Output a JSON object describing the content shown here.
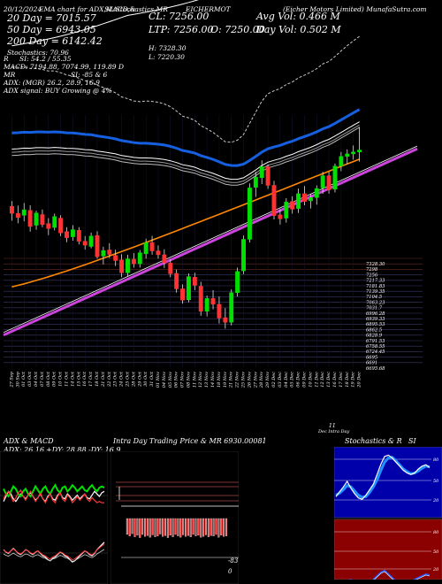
{
  "header": {
    "date": "20/12/2024",
    "ema_legend": "EMA chart for ADX,MACD,&",
    "sl_label": "SL:Stochastics,MR",
    "symbol_legend": "EICHERMOT",
    "brand": "(Eicher Motors Limited) MunafaSutra.com",
    "ema20": "20 Day = 7015.57",
    "ema50": "50 Day = 6943.05",
    "ema200": "200 Day = 6142.42",
    "stochastics": "Stochastics: 70.96",
    "cl": "CL: 7256.00",
    "ltp": "LTP: 7256.00",
    "open": "O: 7250.00",
    "high": "H: 7328.30",
    "low": "L: 7220.30",
    "avg_vol": "Avg Vol: 0.466  M",
    "day_vol": "Day Vol: 0.502  M",
    "si_line": "SI: 54.2  /  55.35",
    "macd_line": "MACD: 7194.88, 7074.99, 119.89 D",
    "mr_line": "SI: -85 & 6",
    "adx_line": "ADX:            (MGR) 26.2, 28.9, 16.9",
    "adx_signal": "ADX  signal:                    BUY Growing @ 4%",
    "r_label": "R",
    "mr_label": "MR",
    "adx_label": "ADX:"
  },
  "colors": {
    "up": "#00e000",
    "down": "#ff3333",
    "ema20": "#ffffff",
    "ema50": "#1560e0",
    "ema200": "#ff8800",
    "band": "#cc44dd",
    "price_level": "#aa3333"
  },
  "chart_data": [
    {
      "type": "candlestick",
      "title": "Eicher Motors Limited daily price with EMA",
      "ylim": [
        6580,
        7420
      ],
      "price_axis": [
        "7328.30",
        "7298",
        "7256",
        "7217.33",
        "7181.83",
        "7139.35",
        "7104.5",
        "7063.23",
        "7031.7",
        "6996.28",
        "6939.33",
        "6895.53",
        "6862.5",
        "6828.9",
        "6791.53",
        "6758.55",
        "6724.45",
        "6695",
        "6691",
        "6695.68"
      ],
      "x": [
        "27 Sep",
        "30 Sep",
        "01 Oct",
        "03 Oct",
        "04 Oct",
        "07 Oct",
        "08 Oct",
        "09 Oct",
        "10 Oct",
        "11 Oct",
        "14 Oct",
        "15 Oct",
        "16 Oct",
        "17 Oct",
        "18 Oct",
        "21 Oct",
        "22 Oct",
        "23 Oct",
        "24 Oct",
        "25 Oct",
        "28 Oct",
        "29 Oct",
        "30 Oct",
        "31 Oct",
        "01 Nov",
        "04 Nov",
        "05 Nov",
        "06 Nov",
        "07 Nov",
        "08 Nov",
        "11 Nov",
        "12 Nov",
        "13 Nov",
        "14 Nov",
        "18 Nov",
        "19 Nov",
        "21 Nov",
        "22 Nov",
        "25 Nov",
        "26 Nov",
        "27 Nov",
        "28 Nov",
        "29 Nov",
        "02 Dec",
        "03 Dec",
        "04 Dec",
        "05 Dec",
        "06 Dec",
        "09 Dec",
        "10 Dec",
        "11 Dec",
        "12 Dec",
        "13 Dec",
        "16 Dec",
        "17 Dec",
        "18 Dec",
        "19 Dec",
        "20 Dec"
      ],
      "candles": [
        [
          7081,
          7097,
          7036,
          7059
        ],
        [
          7059,
          7083,
          7028,
          7046
        ],
        [
          7053,
          7091,
          7034,
          7070
        ],
        [
          7068,
          7084,
          7002,
          7018
        ],
        [
          7022,
          7067,
          7008,
          7060
        ],
        [
          7055,
          7071,
          7016,
          7024
        ],
        [
          7027,
          7044,
          6991,
          7012
        ],
        [
          7015,
          7058,
          7006,
          7049
        ],
        [
          7044,
          7053,
          6988,
          6998
        ],
        [
          7002,
          7016,
          6969,
          6983
        ],
        [
          6986,
          7022,
          6974,
          7008
        ],
        [
          7006,
          7016,
          6962,
          6972
        ],
        [
          6972,
          6988,
          6946,
          6960
        ],
        [
          6956,
          6999,
          6950,
          6988
        ],
        [
          6990,
          7003,
          6918,
          6924
        ],
        [
          6926,
          6955,
          6900,
          6943
        ],
        [
          6945,
          6966,
          6920,
          6931
        ],
        [
          6928,
          6946,
          6895,
          6912
        ],
        [
          6914,
          6932,
          6860,
          6874
        ],
        [
          6874,
          6930,
          6862,
          6917
        ],
        [
          6916,
          6935,
          6890,
          6902
        ],
        [
          6902,
          6945,
          6890,
          6936
        ],
        [
          6933,
          6980,
          6918,
          6968
        ],
        [
          6968,
          6989,
          6930,
          6942
        ],
        [
          6942,
          6959,
          6918,
          6930
        ],
        [
          6930,
          6947,
          6889,
          6905
        ],
        [
          6904,
          6915,
          6860,
          6871
        ],
        [
          6872,
          6884,
          6812,
          6824
        ],
        [
          6824,
          6838,
          6778,
          6789
        ],
        [
          6790,
          6872,
          6782,
          6862
        ],
        [
          6860,
          6874,
          6820,
          6835
        ],
        [
          6832,
          6846,
          6740,
          6754
        ],
        [
          6754,
          6803,
          6738,
          6794
        ],
        [
          6794,
          6820,
          6760,
          6776
        ],
        [
          6776,
          6800,
          6716,
          6733
        ],
        [
          6734,
          6764,
          6700,
          6720
        ],
        [
          6720,
          6822,
          6710,
          6812
        ],
        [
          6812,
          6890,
          6800,
          6878
        ],
        [
          6880,
          6990,
          6870,
          6978
        ],
        [
          6978,
          7152,
          6968,
          7138
        ],
        [
          7140,
          7188,
          7110,
          7172
        ],
        [
          7170,
          7224,
          7150,
          7204
        ],
        [
          7204,
          7211,
          7135,
          7146
        ],
        [
          7146,
          7160,
          7040,
          7052
        ],
        [
          7054,
          7072,
          7024,
          7042
        ],
        [
          7044,
          7106,
          7030,
          7094
        ],
        [
          7096,
          7112,
          7058,
          7072
        ],
        [
          7074,
          7136,
          7060,
          7120
        ],
        [
          7120,
          7144,
          7084,
          7096
        ],
        [
          7098,
          7120,
          7074,
          7108
        ],
        [
          7108,
          7146,
          7086,
          7136
        ],
        [
          7138,
          7188,
          7120,
          7176
        ],
        [
          7176,
          7188,
          7120,
          7132
        ],
        [
          7134,
          7214,
          7124,
          7206
        ],
        [
          7206,
          7250,
          7190,
          7236
        ],
        [
          7236,
          7258,
          7212,
          7244
        ],
        [
          7244,
          7270,
          7226,
          7250
        ],
        [
          7250,
          7328,
          7220,
          7256
        ]
      ],
      "ema20_label": "20 Day",
      "ema50_label": "50 Day",
      "ema200_label": "200 Day"
    },
    {
      "type": "line",
      "title": "ADX & MACD",
      "values_text": [
        "ADX: 26.16",
        "+DY: 28.88",
        "-DY: 16.9"
      ],
      "series": [
        {
          "name": "ADX",
          "color": "#ffffff",
          "values": [
            18,
            22,
            26,
            24,
            20,
            18,
            21,
            24,
            22,
            20,
            23,
            25,
            22,
            19,
            21,
            24,
            20,
            18,
            22,
            24,
            20,
            19,
            23,
            25,
            21,
            20,
            24,
            22,
            19,
            21,
            23,
            20,
            22,
            24,
            21,
            20,
            23,
            26,
            24,
            22,
            25,
            26
          ]
        },
        {
          "name": "+DY",
          "color": "#00e000",
          "values": [
            28,
            24,
            22,
            26,
            30,
            28,
            24,
            22,
            26,
            28,
            24,
            22,
            26,
            30,
            27,
            24,
            28,
            30,
            26,
            24,
            28,
            31,
            27,
            25,
            29,
            30,
            26,
            28,
            31,
            29,
            26,
            28,
            30,
            27,
            26,
            29,
            31,
            28,
            26,
            29,
            30,
            29
          ]
        },
        {
          "name": "-DY",
          "color": "#ff3333",
          "values": [
            20,
            24,
            26,
            22,
            18,
            21,
            25,
            27,
            22,
            19,
            23,
            26,
            22,
            18,
            21,
            25,
            20,
            17,
            21,
            24,
            19,
            17,
            22,
            25,
            20,
            18,
            23,
            21,
            17,
            19,
            22,
            19,
            21,
            24,
            20,
            18,
            21,
            19,
            17,
            18,
            17,
            17
          ]
        }
      ],
      "macd": {
        "values": [
          6,
          4,
          3,
          5,
          7,
          5,
          3,
          2,
          4,
          6,
          5,
          3,
          2,
          4,
          5,
          3,
          1,
          0,
          -2,
          -3,
          -1,
          0,
          2,
          4,
          3,
          1,
          0,
          -2,
          -4,
          -3,
          -1,
          1,
          3,
          5,
          4,
          2,
          1,
          3,
          6,
          8,
          10,
          12
        ]
      }
    },
    {
      "type": "bar",
      "title": "Intra Day Trading Price & MR",
      "mr_value": "6930.00081",
      "mr_low": "-83",
      "mr_zero": "0",
      "values": [
        40,
        44,
        38,
        46,
        42,
        48,
        40,
        45,
        43,
        47,
        41,
        46,
        44,
        39,
        45,
        43,
        48,
        42,
        46,
        40,
        44,
        47,
        41,
        45,
        43,
        46,
        40,
        44,
        42,
        47,
        45,
        41,
        46,
        43,
        44,
        40,
        47,
        42,
        45,
        44
      ]
    },
    {
      "type": "line",
      "title": "Stochastics & RSI",
      "stoch_levels": [
        "80",
        "50",
        "20"
      ],
      "rsi_levels": [
        "80",
        "50",
        "20"
      ],
      "series": [
        {
          "name": "Stochastics",
          "color": "#ffffff",
          "values": [
            28,
            35,
            42,
            50,
            40,
            32,
            26,
            24,
            30,
            38,
            46,
            60,
            75,
            86,
            88,
            84,
            78,
            72,
            66,
            62,
            60,
            62,
            68,
            72,
            74,
            70
          ]
        },
        {
          "name": "Signal",
          "color": "#1e90ff",
          "values": [
            30,
            33,
            38,
            44,
            42,
            36,
            30,
            27,
            28,
            34,
            42,
            52,
            66,
            78,
            84,
            85,
            80,
            74,
            68,
            64,
            61,
            62,
            65,
            69,
            72,
            71
          ]
        },
        {
          "name": "RSI",
          "color": "#2a5cff",
          "values": [
            56,
            58,
            55,
            60,
            62,
            58,
            54,
            52,
            55,
            58,
            62,
            66,
            70,
            72,
            68,
            64,
            60,
            58,
            56,
            58,
            60,
            62,
            64,
            66,
            68,
            67
          ]
        }
      ]
    }
  ],
  "panels": {
    "adx_title": "ADX  & MACD",
    "adx_vals": [
      "ADX: 26.16",
      "+DY: 28.88",
      "-DY: 16.9"
    ],
    "intra_title": "Intra  Day Trading Price  & MR   6930.00081",
    "stoch_title": "Stochastics & R",
    "stoch_title2": "SI",
    "mr_low": "-83",
    "mr_zero": "0",
    "stoch_80": "80",
    "stoch_50": "50",
    "stoch_20": "20",
    "rsi_80": "80",
    "rsi_50": "50",
    "rsi_20": "20",
    "footer_11": "11",
    "footer_dec": "Dec  Intra Day"
  }
}
